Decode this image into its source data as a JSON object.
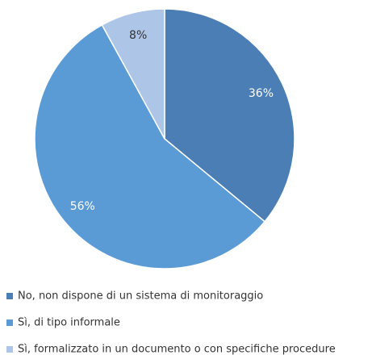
{
  "chart_data": {
    "type": "pie",
    "categories": [
      "No, non dispone di un sistema di monitoraggio",
      "Sì, di tipo informale",
      "Sì, formalizzato in un documento o con specifiche procedure"
    ],
    "values": [
      36,
      56,
      8
    ],
    "value_labels": [
      "36%",
      "56%",
      "8%"
    ],
    "colors": [
      "#4a7eb4",
      "#5b9bd5",
      "#adc5e6"
    ],
    "label_colors": [
      "#ffffff",
      "#ffffff",
      "#333333"
    ],
    "legend": "bottom"
  }
}
